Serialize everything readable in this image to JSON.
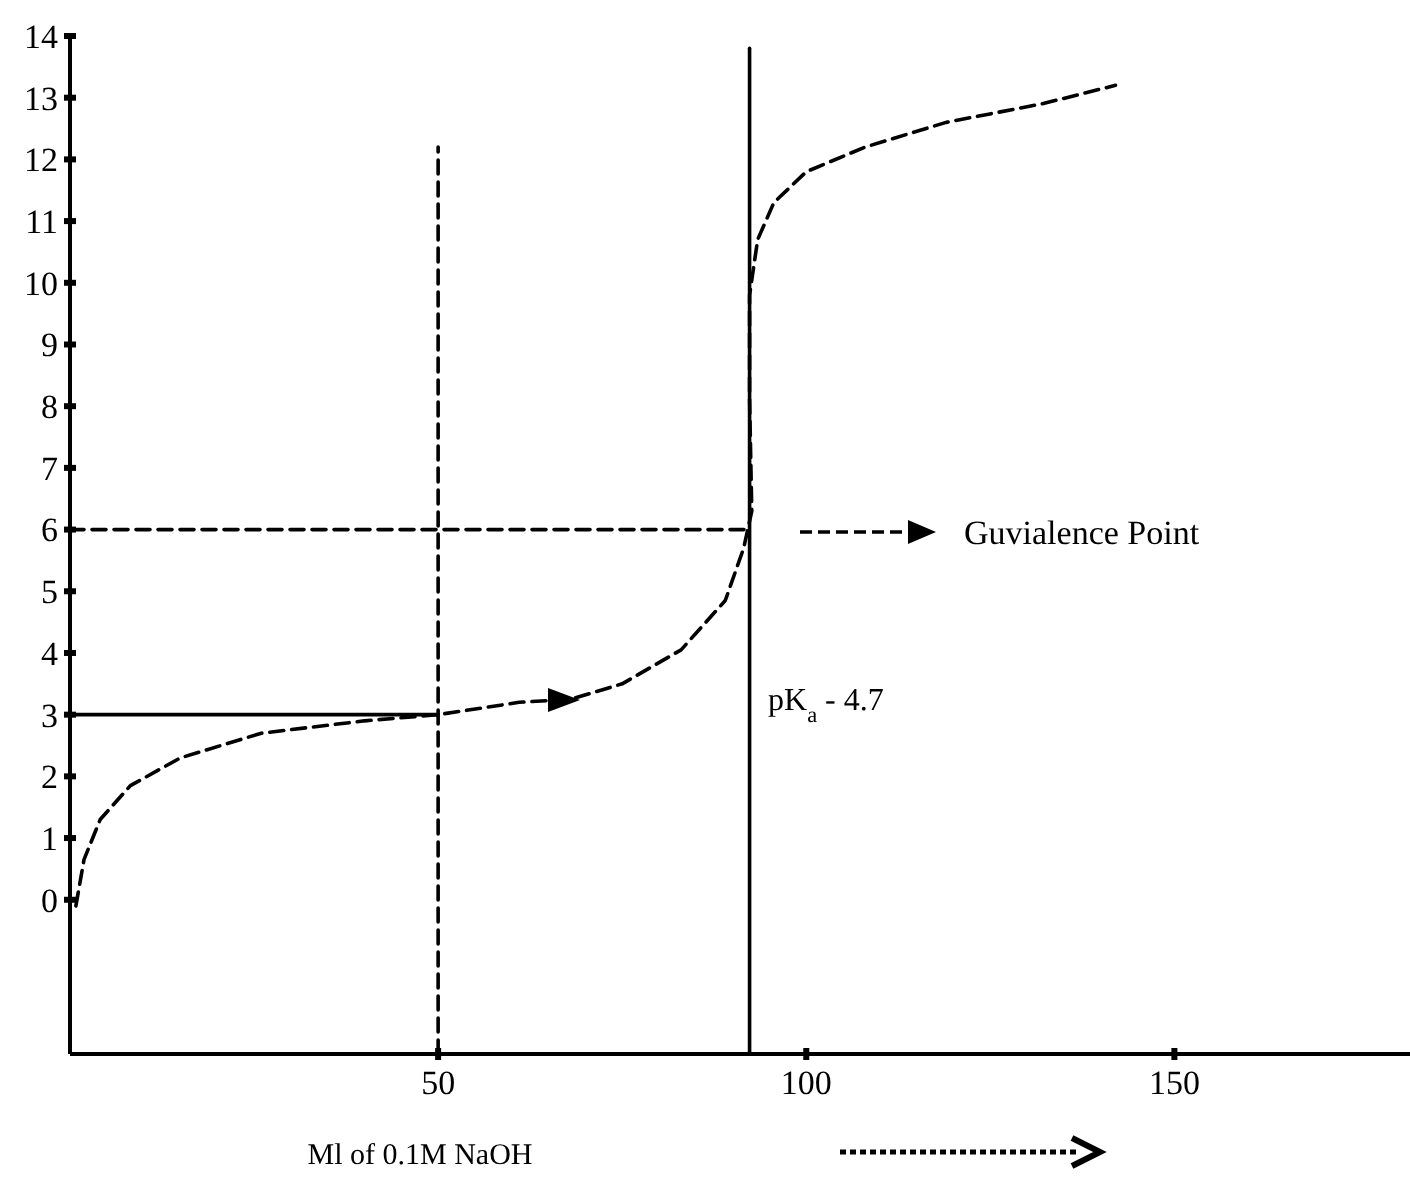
{
  "chart_data": {
    "type": "line",
    "xlabel": "Ml of 0.1M NaOH",
    "xlim": [
      0,
      182
    ],
    "xticks": [
      50,
      100,
      150
    ],
    "ylim": [
      -2.5,
      14
    ],
    "yticks": [
      0,
      1,
      2,
      3,
      4,
      5,
      6,
      7,
      8,
      9,
      10,
      11,
      12,
      13,
      14
    ],
    "annotations": [
      "pK$_{a}$ - 4.7",
      "Guvialence Point"
    ],
    "series": [
      {
        "color": "#000000",
        "line_style": "dashed",
        "x": [
          0.8,
          1.9,
          4.1,
          8.2,
          15,
          26,
          40,
          50,
          61,
          68,
          75,
          83,
          89,
          91.5,
          92.6,
          92.3,
          92.3,
          93.4,
          95.6,
          100,
          108,
          119,
          132,
          142
        ],
        "values": [
          -0.1,
          0.65,
          1.3,
          1.85,
          2.3,
          2.7,
          2.9,
          3.0,
          3.2,
          3.25,
          3.5,
          4.05,
          4.85,
          5.7,
          6.3,
          8.1,
          9.8,
          10.7,
          11.3,
          11.8,
          12.2,
          12.6,
          12.9,
          13.2
        ]
      },
      {
        "color": "#000000",
        "line_style": "dashed",
        "x": [
          0,
          92.3
        ],
        "values": [
          6,
          6
        ]
      },
      {
        "color": "#000000",
        "line_style": "dashed",
        "x": [
          50,
          50
        ],
        "values": [
          -2.5,
          12.2
        ]
      },
      {
        "color": "#000000",
        "line_style": "solid",
        "x": [
          92.3,
          92.3
        ],
        "values": [
          -2.5,
          13.8
        ]
      },
      {
        "color": "#000000",
        "line_style": "solid",
        "x": [
          0,
          50
        ],
        "values": [
          3,
          3
        ]
      }
    ]
  }
}
